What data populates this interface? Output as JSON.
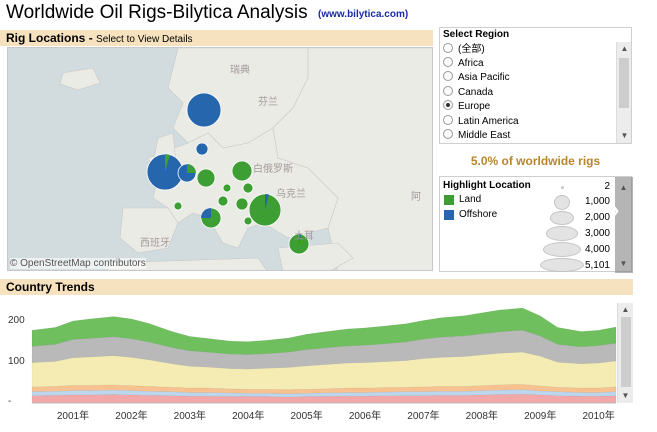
{
  "header": {
    "title": "Worldwide Oil Rigs-Bilytica Analysis",
    "site_link": "(www.bilytica.com)"
  },
  "rig_locations": {
    "heading": "Rig Locations",
    "separator": "-",
    "subheading": "Select to View Details",
    "attribution": "© OpenStreetMap contributors",
    "map_labels": [
      "瑞典",
      "芬兰",
      "白俄罗斯",
      "乌克兰",
      "西班牙",
      "土耳",
      "阿"
    ]
  },
  "select_region": {
    "title": "Select Region",
    "options": [
      {
        "label": "(全部)",
        "selected": false
      },
      {
        "label": "Africa",
        "selected": false
      },
      {
        "label": "Asia Pacific",
        "selected": false
      },
      {
        "label": "Canada",
        "selected": false
      },
      {
        "label": "Europe",
        "selected": true
      },
      {
        "label": "Latin America",
        "selected": false
      },
      {
        "label": "Middle East",
        "selected": false
      }
    ]
  },
  "share_text": "5.0% of worldwide rigs",
  "highlight_location": {
    "title": "Highlight Location",
    "legend": [
      {
        "label": "Land",
        "color": "#3d9e34"
      },
      {
        "label": "Offshore",
        "color": "#2566ad"
      }
    ],
    "sizes": [
      "2",
      "1,000",
      "2,000",
      "3,000",
      "4,000",
      "5,101"
    ]
  },
  "country_trends": {
    "heading": "Country Trends"
  },
  "chart_data": {
    "type": "area",
    "title": "Country Trends",
    "xlabel": "",
    "ylabel": "",
    "ylim": [
      0,
      240
    ],
    "yticks": [
      0,
      100,
      200
    ],
    "ytick_labels": [
      "-",
      "100",
      "200"
    ],
    "x_tick_labels": [
      "2001年",
      "2002年",
      "2003年",
      "2004年",
      "2005年",
      "2006年",
      "2007年",
      "2008年",
      "2009年",
      "2010年"
    ],
    "x": [
      2000.3,
      2000.7,
      2001.0,
      2001.3,
      2001.7,
      2002.0,
      2002.3,
      2002.7,
      2003.0,
      2003.3,
      2003.7,
      2004.0,
      2004.3,
      2004.7,
      2005.0,
      2005.3,
      2005.7,
      2006.0,
      2006.3,
      2006.7,
      2007.0,
      2007.3,
      2007.7,
      2008.0,
      2008.3,
      2008.7,
      2009.0,
      2009.3,
      2009.7,
      2010.0,
      2010.3
    ],
    "series": [
      {
        "color": "#f2a8a8",
        "values": [
          18,
          19,
          20,
          20,
          21,
          20,
          19,
          18,
          17,
          17,
          16,
          16,
          16,
          15,
          16,
          16,
          17,
          17,
          18,
          18,
          18,
          19,
          19,
          20,
          21,
          22,
          20,
          18,
          17,
          17,
          18
        ]
      },
      {
        "color": "#bcd6ee",
        "values": [
          10,
          10,
          11,
          11,
          11,
          11,
          10,
          10,
          9,
          9,
          9,
          8,
          8,
          8,
          8,
          9,
          9,
          9,
          9,
          10,
          10,
          10,
          10,
          11,
          11,
          11,
          10,
          10,
          9,
          9,
          10
        ]
      },
      {
        "color": "#f7c28f",
        "values": [
          12,
          12,
          13,
          13,
          13,
          12,
          12,
          11,
          11,
          11,
          10,
          10,
          10,
          10,
          10,
          10,
          11,
          11,
          11,
          11,
          12,
          12,
          12,
          12,
          13,
          13,
          12,
          11,
          11,
          11,
          12
        ]
      },
      {
        "color": "#f4ecb2",
        "values": [
          60,
          62,
          68,
          70,
          72,
          70,
          66,
          58,
          54,
          52,
          50,
          50,
          52,
          55,
          58,
          60,
          62,
          63,
          64,
          66,
          70,
          72,
          74,
          76,
          78,
          80,
          74,
          62,
          60,
          62,
          64
        ]
      },
      {
        "color": "#b9b9b9",
        "values": [
          40,
          42,
          45,
          46,
          47,
          46,
          44,
          40,
          38,
          37,
          36,
          36,
          36,
          38,
          40,
          41,
          42,
          43,
          44,
          46,
          48,
          50,
          51,
          52,
          53,
          54,
          50,
          44,
          42,
          43,
          44
        ]
      },
      {
        "color": "#6fbf5f",
        "values": [
          40,
          42,
          46,
          48,
          50,
          49,
          46,
          40,
          36,
          34,
          32,
          32,
          33,
          35,
          38,
          40,
          42,
          43,
          44,
          45,
          46,
          48,
          50,
          52,
          54,
          55,
          50,
          42,
          38,
          38,
          40
        ]
      }
    ]
  }
}
